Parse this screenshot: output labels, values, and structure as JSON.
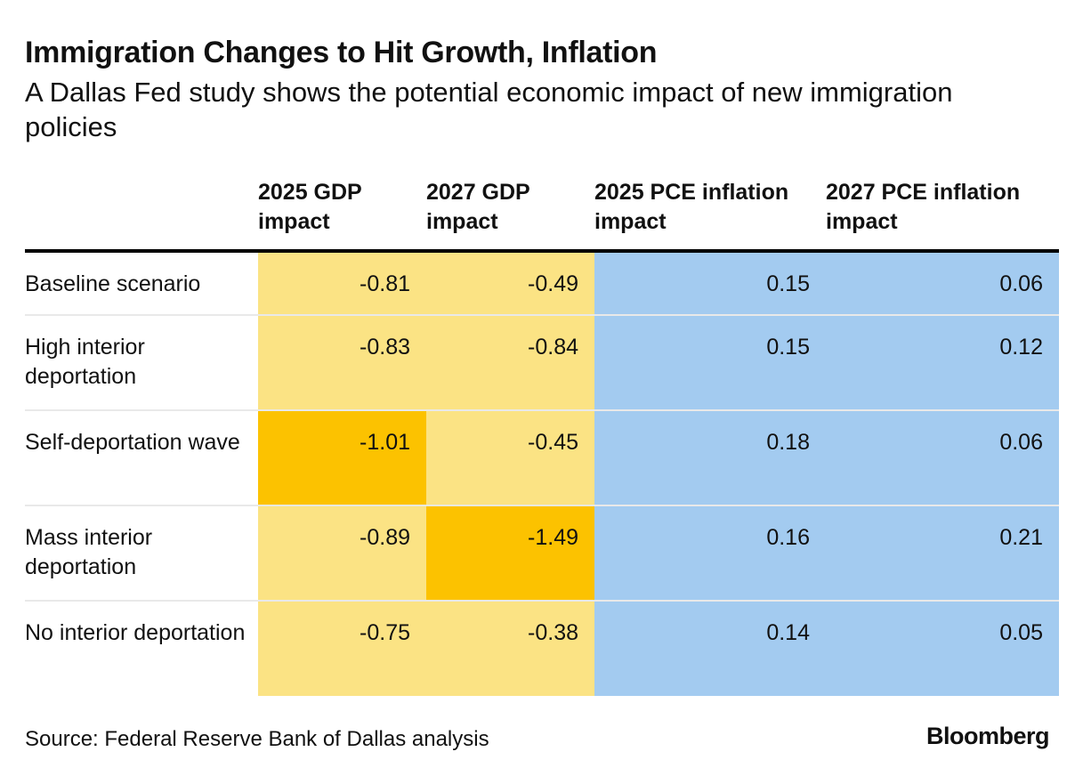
{
  "title": "Immigration Changes to Hit Growth, Inflation",
  "subtitle": "A Dallas Fed study shows the potential economic impact of new immigration policies",
  "source": "Source: Federal Reserve Bank of Dallas analysis",
  "brand": "Bloomberg",
  "colors": {
    "gdp_light": "#fbe384",
    "gdp_highlight": "#fcc200",
    "pce": "#a3cbf0"
  },
  "chart_data": {
    "type": "table",
    "columns": [
      "",
      "2025 GDP impact",
      "2027 GDP impact",
      "2025 PCE inflation impact",
      "2027 PCE inflation impact"
    ],
    "rows": [
      {
        "label": "Baseline scenario",
        "values": [
          "-0.81",
          "-0.49",
          "0.15",
          "0.06"
        ],
        "highlight": [
          false,
          false,
          false,
          false
        ]
      },
      {
        "label": "High interior deportation",
        "values": [
          "-0.83",
          "-0.84",
          "0.15",
          "0.12"
        ],
        "highlight": [
          false,
          false,
          false,
          false
        ]
      },
      {
        "label": "Self-deportation wave",
        "values": [
          "-1.01",
          "-0.45",
          "0.18",
          "0.06"
        ],
        "highlight": [
          true,
          false,
          false,
          false
        ]
      },
      {
        "label": "Mass interior deportation",
        "values": [
          "-0.89",
          "-1.49",
          "0.16",
          "0.21"
        ],
        "highlight": [
          false,
          true,
          false,
          false
        ]
      },
      {
        "label": "No interior deportation",
        "values": [
          "-0.75",
          "-0.38",
          "0.14",
          "0.05"
        ],
        "highlight": [
          false,
          false,
          false,
          false
        ]
      }
    ]
  }
}
